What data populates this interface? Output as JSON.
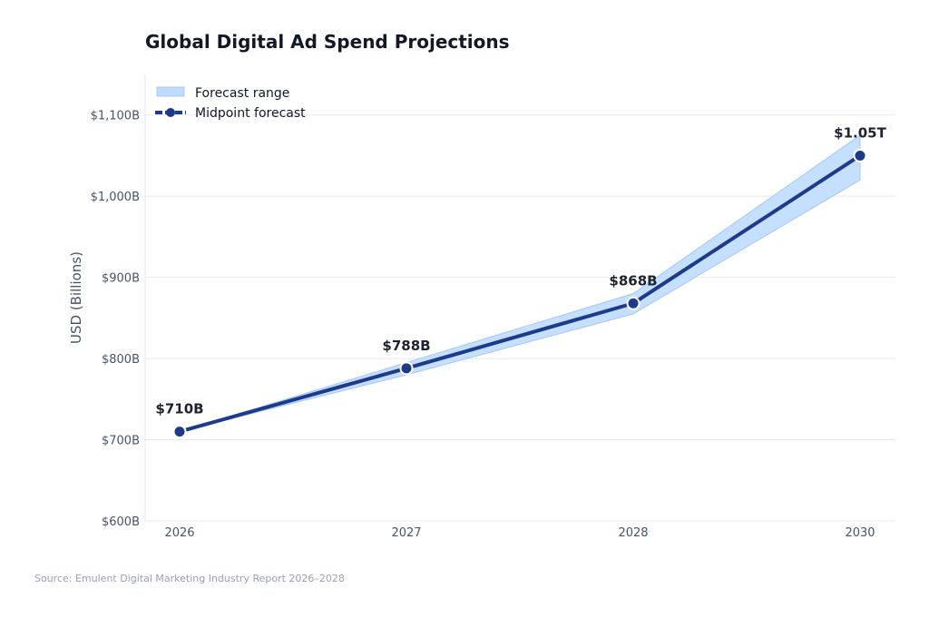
{
  "chart_data": {
    "type": "line",
    "title": "Global Digital Ad Spend Projections",
    "xlabel": "",
    "ylabel": "USD (Billions)",
    "categories": [
      "2026",
      "2027",
      "2028",
      "2030"
    ],
    "series": [
      {
        "name": "Midpoint forecast",
        "values": [
          710,
          788,
          868,
          1050
        ],
        "data_labels": [
          "$710B",
          "$788B",
          "$868B",
          "$1.05T"
        ],
        "color": "#1e3a8a"
      },
      {
        "name": "Forecast range",
        "lower": [
          710,
          780,
          855,
          1020
        ],
        "upper": [
          710,
          795,
          880,
          1075
        ],
        "color": "#bfdbfe"
      }
    ],
    "ylim": [
      600,
      1150
    ],
    "yticks": [
      600,
      700,
      800,
      900,
      1000,
      1100
    ],
    "ytick_labels": [
      "$600B",
      "$700B",
      "$800B",
      "$900B",
      "$1,000B",
      "$1,100B"
    ],
    "grid": true,
    "legend": "top-left"
  },
  "source": "Source: Emulent Digital Marketing Industry Report 2026–2028"
}
